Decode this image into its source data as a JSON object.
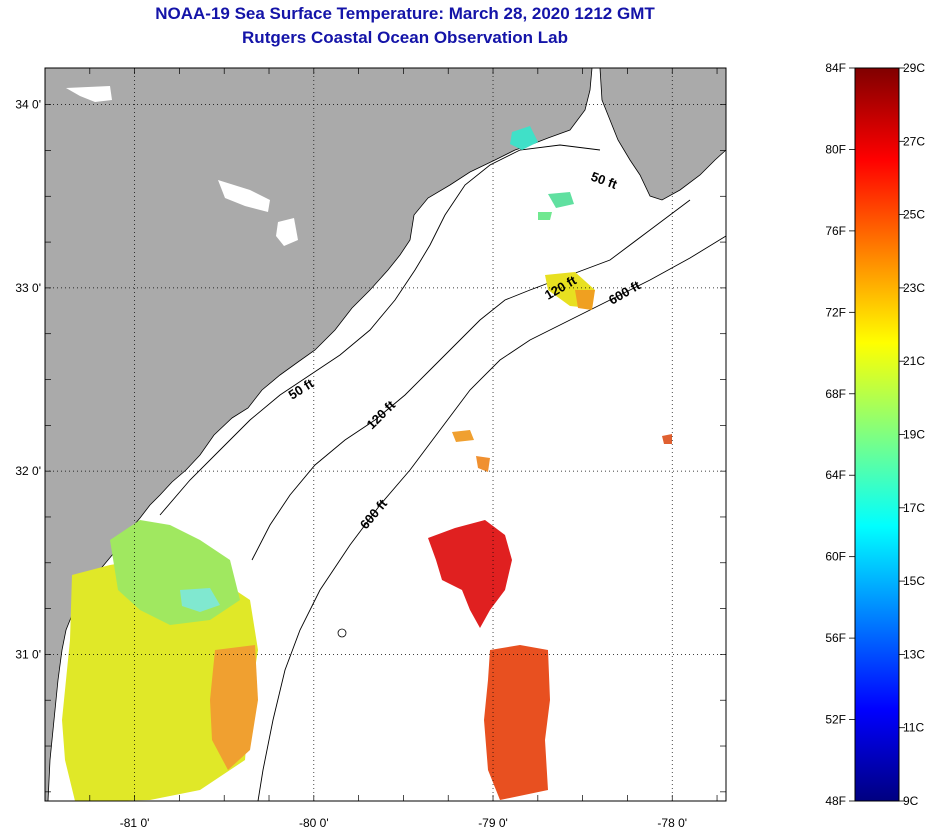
{
  "title": "NOAA-19 Sea Surface Temperature:  March 28, 2020 1212 GMT",
  "subtitle": "Rutgers Coastal Ocean Observation Lab",
  "map": {
    "lat_ticks": [
      {
        "value": 34,
        "label": "34 0'"
      },
      {
        "value": 33,
        "label": "33 0'"
      },
      {
        "value": 32,
        "label": "32 0'"
      },
      {
        "value": 31,
        "label": "31 0'"
      }
    ],
    "lon_ticks": [
      {
        "value": -81,
        "label": "-81 0'"
      },
      {
        "value": -80,
        "label": "-80 0'"
      },
      {
        "value": -79,
        "label": "-79 0'"
      },
      {
        "value": -78,
        "label": "-78 0'"
      }
    ],
    "lat_range": [
      30.2,
      34.2
    ],
    "lon_range": [
      -81.5,
      -77.7
    ],
    "land_color": "#aaaaaa",
    "contour_labels": [
      "50 ft",
      "50 ft",
      "120 ft",
      "120 ft",
      "600 ft",
      "600 ft"
    ]
  },
  "colorbar": {
    "fahrenheit_labels": [
      "84F",
      "80F",
      "76F",
      "72F",
      "68F",
      "64F",
      "60F",
      "56F",
      "52F",
      "48F"
    ],
    "celsius_labels": [
      "29C",
      "27C",
      "25C",
      "23C",
      "21C",
      "19C",
      "17C",
      "15C",
      "13C",
      "11C",
      "9C"
    ],
    "colors": [
      "#000080",
      "#0000ff",
      "#0080ff",
      "#00ffff",
      "#80ff80",
      "#ffff00",
      "#ff8000",
      "#ff0000",
      "#800000"
    ]
  }
}
